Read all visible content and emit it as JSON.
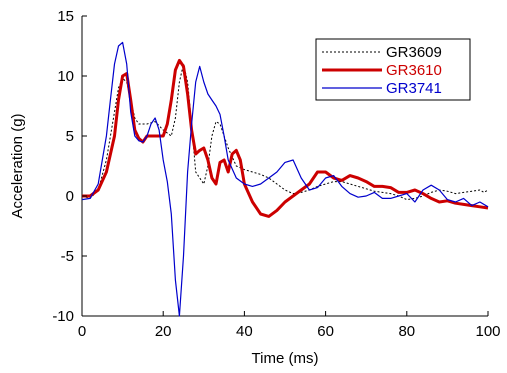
{
  "chart_data": {
    "type": "line",
    "title": "",
    "xlabel": "Time (ms)",
    "ylabel": "Acceleration (g)",
    "xlim": [
      0,
      100
    ],
    "ylim": [
      -10,
      15
    ],
    "x_ticks": [
      "0",
      "20",
      "40",
      "60",
      "80",
      "100"
    ],
    "y_ticks": [
      "15",
      "10",
      "5",
      "0",
      "-5",
      "-10"
    ],
    "grid": false,
    "legend_position": "top-right",
    "series": [
      {
        "name": "GR3609",
        "color": "#000000",
        "style": "dotted",
        "x": [
          0,
          2,
          4,
          6,
          8,
          9,
          10,
          11,
          12,
          13,
          14,
          16,
          18,
          20,
          22,
          23,
          24,
          25,
          26,
          27,
          28,
          30,
          31,
          32,
          33,
          34,
          35,
          36,
          38,
          40,
          42,
          44,
          46,
          48,
          50,
          52,
          54,
          56,
          58,
          60,
          62,
          64,
          66,
          68,
          70,
          72,
          74,
          76,
          78,
          80,
          82,
          84,
          86,
          88,
          90,
          92,
          94,
          96,
          98,
          99,
          100
        ],
        "values": [
          0,
          -0.2,
          0.5,
          3,
          7,
          9,
          9.8,
          9.5,
          8,
          6.5,
          6,
          6,
          6.2,
          5.5,
          5,
          6.5,
          9.5,
          11,
          9.5,
          6,
          2,
          1,
          2.5,
          5,
          6.2,
          6,
          5,
          4,
          2.5,
          2.2,
          2,
          1.8,
          1.5,
          1,
          0.5,
          0.2,
          0.3,
          0.5,
          0.8,
          1,
          1.2,
          1.2,
          1,
          0.8,
          0.6,
          0.4,
          0.3,
          0.2,
          0,
          -0.3,
          -0.2,
          0,
          0.3,
          0.5,
          0.4,
          0.2,
          0.3,
          0.4,
          0.5,
          0.3,
          0.5
        ]
      },
      {
        "name": "GR3610",
        "color": "#cc0000",
        "style": "solid-thick",
        "x": [
          0,
          2,
          4,
          6,
          8,
          9,
          10,
          11,
          12,
          13,
          14,
          15,
          16,
          18,
          20,
          21,
          22,
          23,
          24,
          25,
          26,
          27,
          28,
          29,
          30,
          31,
          32,
          33,
          34,
          35,
          36,
          37,
          38,
          39,
          40,
          42,
          44,
          46,
          48,
          50,
          52,
          54,
          56,
          58,
          60,
          62,
          64,
          66,
          68,
          70,
          72,
          74,
          76,
          78,
          80,
          82,
          84,
          86,
          88,
          90,
          92,
          94,
          96,
          98,
          100
        ],
        "values": [
          0,
          0,
          0.5,
          2,
          5,
          8,
          10,
          10.2,
          8,
          5.5,
          4.8,
          4.5,
          5,
          5,
          5,
          6,
          8,
          10.5,
          11.3,
          10.8,
          8.5,
          5.5,
          3.5,
          3.8,
          4,
          3,
          1.5,
          1,
          2.8,
          3,
          2,
          3.5,
          3.8,
          3,
          1,
          -0.5,
          -1.5,
          -1.7,
          -1.2,
          -0.5,
          0,
          0.5,
          1,
          2,
          2,
          1.5,
          1.3,
          1.7,
          1.5,
          1.2,
          0.8,
          0.8,
          0.7,
          0.3,
          0.3,
          0.5,
          0.2,
          -0.2,
          -0.5,
          -0.4,
          -0.6,
          -0.7,
          -0.8,
          -0.9,
          -1
        ]
      },
      {
        "name": "GR3741",
        "color": "#0000cc",
        "style": "solid",
        "x": [
          0,
          2,
          4,
          6,
          7,
          8,
          9,
          10,
          11,
          12,
          13,
          14,
          15,
          16,
          17,
          18,
          19,
          20,
          21,
          22,
          23,
          24,
          25,
          26,
          27,
          28,
          29,
          30,
          31,
          32,
          33,
          34,
          35,
          36,
          38,
          40,
          42,
          44,
          46,
          48,
          50,
          52,
          54,
          56,
          58,
          60,
          62,
          64,
          66,
          68,
          70,
          72,
          74,
          76,
          78,
          80,
          82,
          84,
          86,
          88,
          90,
          92,
          94,
          96,
          98,
          100
        ],
        "values": [
          -0.3,
          -0.2,
          1,
          5,
          8,
          11,
          12.5,
          12.8,
          11,
          7,
          5,
          4.6,
          4.5,
          5,
          6,
          6.5,
          5.5,
          3,
          1.2,
          -1.5,
          -7,
          -10,
          -5,
          2,
          6,
          9.5,
          10.8,
          9.5,
          8.5,
          8,
          7.5,
          6.8,
          5,
          3,
          1.5,
          1,
          0.8,
          1,
          1.5,
          2,
          2.8,
          3,
          1.5,
          0.5,
          0.7,
          1.5,
          1.7,
          0.8,
          0.2,
          -0.1,
          0,
          0.3,
          -0.2,
          -0.2,
          0,
          0.2,
          -0.5,
          0.5,
          0.9,
          0.5,
          -0.3,
          -0.5,
          -0.2,
          -0.8,
          -0.5,
          -0.9
        ]
      }
    ]
  }
}
